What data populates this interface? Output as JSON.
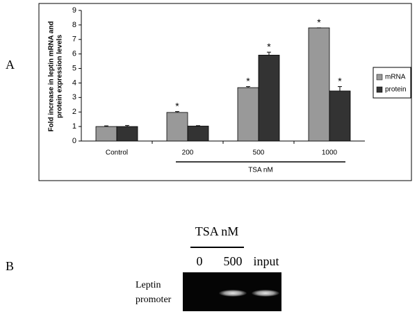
{
  "panel_labels": [
    "A",
    "B"
  ],
  "chart_data": {
    "type": "bar",
    "ylabel": [
      "Fold increase in leptin mRNA and",
      "protein expression levels"
    ],
    "categories": [
      "Control",
      "200",
      "500",
      "1000"
    ],
    "group_label": "TSA nM",
    "series": [
      {
        "name": "mRNA",
        "color": "#999999",
        "values": [
          1,
          1.97,
          3.68,
          7.8
        ],
        "errors": [
          0.05,
          0.06,
          0.07,
          0
        ],
        "significance": [
          null,
          "*",
          "*",
          "*"
        ]
      },
      {
        "name": "protein",
        "color": "#333333",
        "values": [
          1,
          1.03,
          5.92,
          3.45
        ],
        "errors": [
          0.07,
          0.03,
          0.2,
          0.3
        ],
        "significance": [
          null,
          null,
          "*",
          "*"
        ]
      }
    ],
    "ylim": [
      0,
      9
    ],
    "yticks": [
      0,
      1,
      2,
      3,
      4,
      5,
      6,
      7,
      8,
      9
    ],
    "legend": "right"
  },
  "gel": {
    "title": "TSA nM",
    "lanes": [
      "0",
      "500",
      "input"
    ],
    "row_label": [
      "Leptin",
      "promoter"
    ]
  }
}
